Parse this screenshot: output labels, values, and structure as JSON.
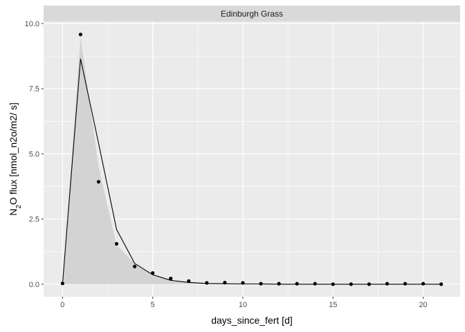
{
  "chart_data": {
    "type": "line",
    "facet_title": "Edinburgh Grass",
    "xlabel": "days_since_fert [d]",
    "ylabel": {
      "pre": "N",
      "sub": "2",
      "post": "O flux [nmol_n2o/m2/ s]"
    },
    "xlim": [
      -1.05,
      22.05
    ],
    "ylim": [
      -0.48,
      10.08
    ],
    "x_ticks": [
      0,
      5,
      10,
      15,
      20
    ],
    "y_ticks": [
      0.0,
      2.5,
      5.0,
      7.5,
      10.0
    ],
    "x_tick_labels": [
      "0",
      "5",
      "10",
      "15",
      "20"
    ],
    "y_tick_labels": [
      "0.0",
      "2.5",
      "5.0",
      "7.5",
      "10.0"
    ],
    "grid": true,
    "series": [
      {
        "kind": "ribbon",
        "x": [
          0,
          1,
          2,
          3,
          4,
          5,
          6,
          7,
          8,
          9,
          10,
          11,
          12,
          13,
          14,
          15,
          16,
          17,
          18,
          19,
          20,
          21
        ],
        "lower": [
          0,
          0,
          0,
          0,
          0,
          0,
          0,
          0,
          0,
          0,
          0,
          0,
          0,
          0,
          0,
          0,
          0,
          0,
          0,
          0,
          0,
          0
        ],
        "upper": [
          0.02,
          9.5,
          4.5,
          1.5,
          0.8,
          0.4,
          0.17,
          0.08,
          0.04,
          0.02,
          0.01,
          0.01,
          0.01,
          0.0,
          0.0,
          0.0,
          0.0,
          0.0,
          0.0,
          0.0,
          0.0,
          0.0
        ]
      },
      {
        "kind": "line",
        "x": [
          0,
          1,
          2,
          3,
          4,
          5,
          6,
          7,
          8,
          9,
          10,
          11,
          12,
          13,
          14,
          15,
          16,
          17,
          18,
          19,
          20,
          21
        ],
        "values": [
          0.02,
          8.65,
          5.4,
          2.1,
          0.8,
          0.36,
          0.15,
          0.07,
          0.03,
          0.02,
          0.01,
          0.01,
          0.0,
          0.0,
          0.0,
          0.0,
          0.0,
          0.0,
          0.0,
          0.0,
          0.0,
          0.0
        ]
      },
      {
        "kind": "points",
        "x": [
          0,
          1,
          2,
          3,
          4,
          5,
          6,
          7,
          8,
          9,
          10,
          11,
          12,
          13,
          14,
          15,
          16,
          17,
          18,
          19,
          20,
          21
        ],
        "values": [
          0.03,
          9.58,
          3.93,
          1.55,
          0.68,
          0.43,
          0.22,
          0.12,
          0.05,
          0.06,
          0.05,
          0.02,
          0.02,
          0.02,
          0.02,
          0.0,
          0.0,
          0.0,
          0.02,
          0.02,
          0.02,
          0.0
        ]
      }
    ]
  },
  "colors": {
    "panel_bg": "#ebebeb",
    "grid_major": "#ffffff",
    "strip_bg": "#d9d9d9",
    "ribbon": "#d3d3d3",
    "line": "#000000",
    "points": "#000000"
  }
}
